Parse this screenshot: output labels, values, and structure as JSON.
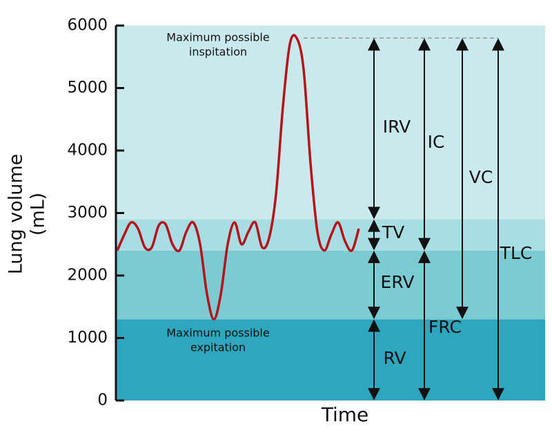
{
  "chart_data": {
    "type": "line",
    "y_label": [
      "Lung volume",
      "(mL)"
    ],
    "x_label": "Time",
    "ylim": [
      0,
      6000
    ],
    "yticks": [
      0,
      1000,
      2000,
      3000,
      4000,
      5000,
      6000
    ],
    "bands": [
      {
        "to": 1300,
        "color": "#2ea6bd"
      },
      {
        "to": 2400,
        "color": "#7dcbd2"
      },
      {
        "to": 2900,
        "color": "#a7dde3"
      },
      {
        "to": 6000,
        "color": "#cae9ec"
      }
    ],
    "series": [
      {
        "color": "#b5121b",
        "values": [
          2400,
          2650,
          2850,
          2750,
          2450,
          2450,
          2800,
          2820,
          2500,
          2400,
          2700,
          2850,
          2500,
          1700,
          1300,
          1700,
          2500,
          2850,
          2500,
          2700,
          2850,
          2450,
          2600,
          3300,
          4700,
          5700,
          5800,
          5300,
          3800,
          2700,
          2400,
          2650,
          2850,
          2550,
          2400,
          2750
        ]
      }
    ],
    "max_line": 5800,
    "volumes": [
      {
        "label": "IRV",
        "from": 2900,
        "to": 5800,
        "column": 0
      },
      {
        "label": "TV",
        "from": 2400,
        "to": 2900,
        "column": 0
      },
      {
        "label": "ERV",
        "from": 1300,
        "to": 2400,
        "column": 0
      },
      {
        "label": "RV",
        "from": 0,
        "to": 1300,
        "column": 0
      },
      {
        "label": "IC",
        "from": 2400,
        "to": 5800,
        "column": 1
      },
      {
        "label": "FRC",
        "from": 0,
        "to": 2400,
        "column": 1
      },
      {
        "label": "VC",
        "from": 1300,
        "to": 5800,
        "column": 2
      },
      {
        "label": "TLC",
        "from": 0,
        "to": 5800,
        "column": 3
      }
    ],
    "annotations": [
      {
        "lines": [
          "Maximum possible",
          "inspitation"
        ]
      },
      {
        "lines": [
          "Maximum possible",
          "expitation"
        ]
      }
    ]
  }
}
